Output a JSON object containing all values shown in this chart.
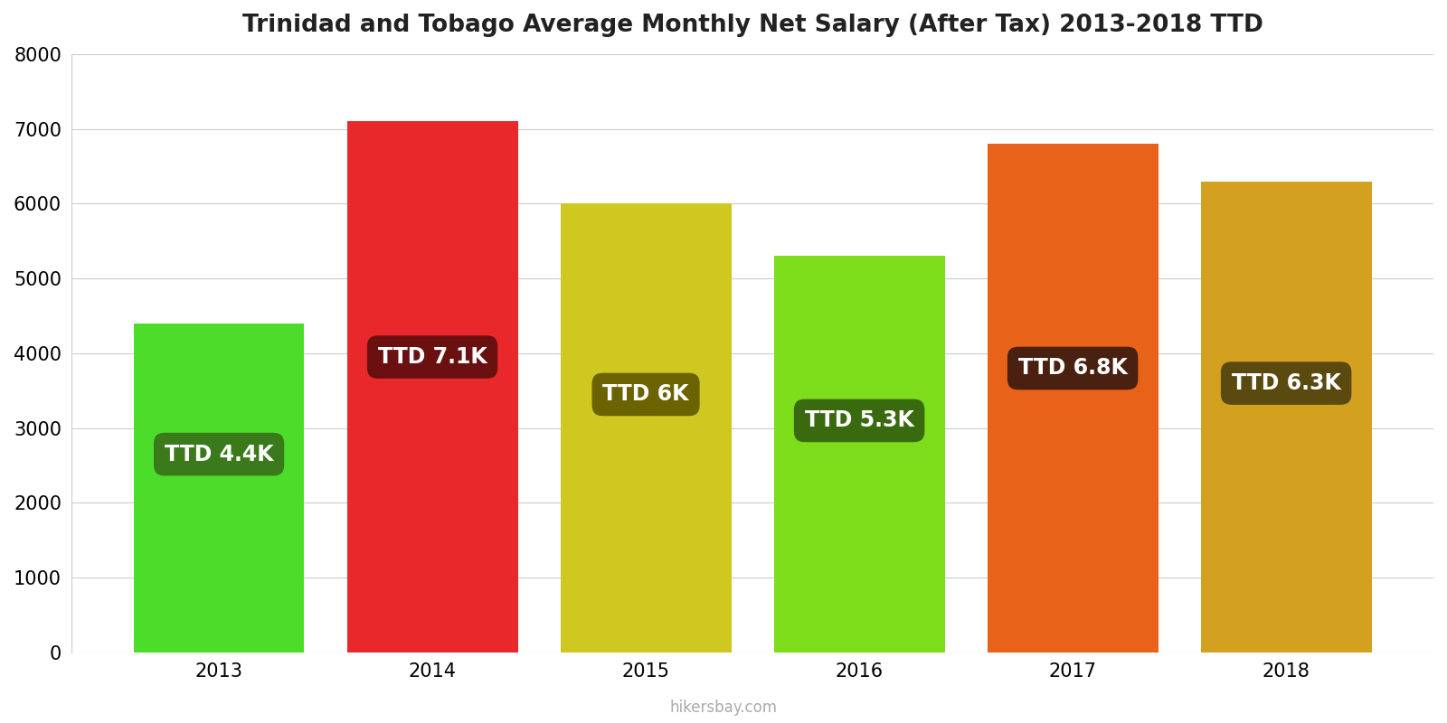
{
  "title": "Trinidad and Tobago Average Monthly Net Salary (After Tax) 2013-2018 TTD",
  "years": [
    2013,
    2014,
    2015,
    2016,
    2017,
    2018
  ],
  "values": [
    4400,
    7100,
    6000,
    5300,
    6800,
    6300
  ],
  "bar_colors": [
    "#4cdd2a",
    "#e8282a",
    "#cfc821",
    "#7ddd1a",
    "#e8621a",
    "#d4a020"
  ],
  "label_bg_colors": [
    "#3a7a1a",
    "#6b1010",
    "#6b6300",
    "#3a6a10",
    "#4a2010",
    "#5a4a10"
  ],
  "labels": [
    "TTD 4.4K",
    "TTD 7.1K",
    "TTD 6K",
    "TTD 5.3K",
    "TTD 6.8K",
    "TTD 6.3K"
  ],
  "ylim": [
    0,
    8000
  ],
  "yticks": [
    0,
    1000,
    2000,
    3000,
    4000,
    5000,
    6000,
    7000,
    8000
  ],
  "label_y_positions": [
    2650,
    3950,
    3450,
    3100,
    3800,
    3600
  ],
  "footer": "hikersbay.com",
  "background_color": "#ffffff",
  "grid_color": "#cccccc"
}
